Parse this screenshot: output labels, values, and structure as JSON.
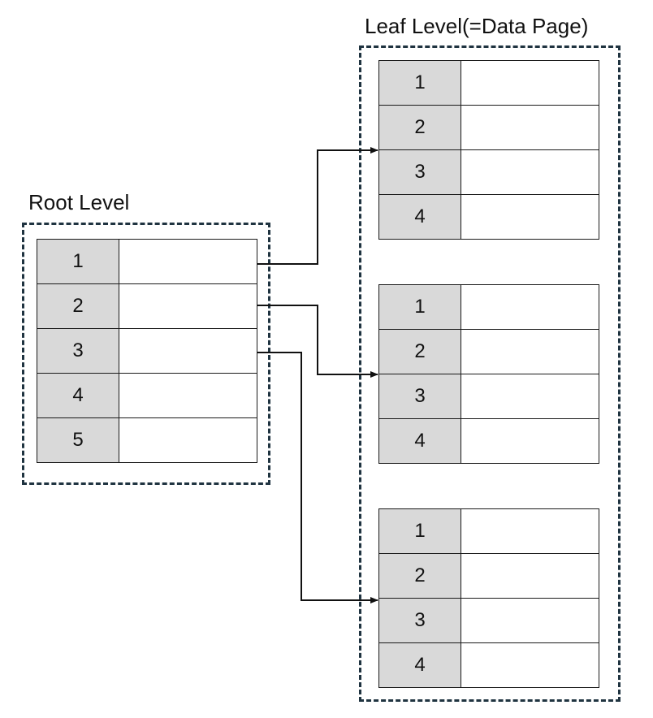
{
  "root_level": {
    "label": "Root Level",
    "rows": [
      {
        "key": "1",
        "value": ""
      },
      {
        "key": "2",
        "value": ""
      },
      {
        "key": "3",
        "value": ""
      },
      {
        "key": "4",
        "value": ""
      },
      {
        "key": "5",
        "value": ""
      }
    ]
  },
  "leaf_level": {
    "label": "Leaf Level(=Data Page)",
    "pages": [
      {
        "rows": [
          {
            "key": "1",
            "value": ""
          },
          {
            "key": "2",
            "value": ""
          },
          {
            "key": "3",
            "value": ""
          },
          {
            "key": "4",
            "value": ""
          }
        ]
      },
      {
        "rows": [
          {
            "key": "1",
            "value": ""
          },
          {
            "key": "2",
            "value": ""
          },
          {
            "key": "3",
            "value": ""
          },
          {
            "key": "4",
            "value": ""
          }
        ]
      },
      {
        "rows": [
          {
            "key": "1",
            "value": ""
          },
          {
            "key": "2",
            "value": ""
          },
          {
            "key": "3",
            "value": ""
          },
          {
            "key": "4",
            "value": ""
          }
        ]
      }
    ]
  },
  "links": [
    {
      "from_root_row": 1,
      "to_leaf_page": 1
    },
    {
      "from_root_row": 2,
      "to_leaf_page": 2
    },
    {
      "from_root_row": 3,
      "to_leaf_page": 3
    }
  ],
  "colors": {
    "dashed_border": "#1f3340",
    "key_cell_fill": "#d9d9d9",
    "cell_border": "#1a1a1a"
  }
}
